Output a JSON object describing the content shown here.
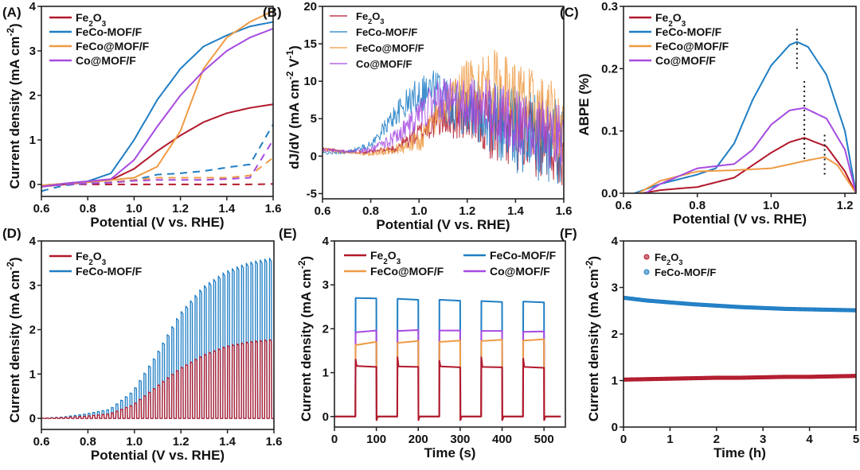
{
  "colors": {
    "Fe2O3": "#b2182b",
    "FeCo-MOF/F": "#1f7ec4",
    "FeCo@MOF/F": "#ef9b45",
    "Co@MOF/F": "#a64be0"
  },
  "chart_data": [
    {
      "id": "A",
      "panel_label": "(A)",
      "type": "line",
      "xlabel": "Potential (V vs. RHE)",
      "ylabel": "Current density (mA cm-2)",
      "xlim": [
        0.6,
        1.6
      ],
      "ylim": [
        -0.27,
        4
      ],
      "xticks": [
        "0.6",
        "0.8",
        "1.0",
        "1.2",
        "1.4",
        "1.6"
      ],
      "yticks": [
        "0",
        "1",
        "2",
        "3",
        "4"
      ],
      "legend": [
        "Fe2O3",
        "FeCo-MOF/F",
        "FeCo@MOF/F",
        "Co@MOF/F"
      ],
      "legend_position": "top-left",
      "x": [
        0.6,
        0.7,
        0.8,
        0.9,
        1.0,
        1.1,
        1.2,
        1.3,
        1.4,
        1.5,
        1.6
      ],
      "series": [
        {
          "name": "Fe2O3",
          "style": "solid",
          "values": [
            -0.05,
            0.0,
            0.05,
            0.1,
            0.35,
            0.75,
            1.1,
            1.4,
            1.6,
            1.72,
            1.8
          ]
        },
        {
          "name": "FeCo-MOF/F",
          "style": "solid",
          "values": [
            -0.05,
            0.02,
            0.07,
            0.25,
            1.0,
            1.9,
            2.6,
            3.1,
            3.35,
            3.55,
            3.65
          ]
        },
        {
          "name": "FeCo@MOF/F",
          "style": "solid",
          "values": [
            -0.02,
            0.02,
            0.05,
            0.1,
            0.15,
            0.4,
            1.2,
            2.6,
            3.3,
            3.65,
            3.9
          ]
        },
        {
          "name": "Co@MOF/F",
          "style": "solid",
          "values": [
            -0.05,
            0.02,
            0.07,
            0.12,
            0.55,
            1.3,
            2.0,
            2.55,
            3.0,
            3.3,
            3.5
          ]
        },
        {
          "name": "Fe2O3",
          "style": "dashed",
          "values": [
            -0.05,
            0.0,
            0.0,
            0.0,
            0.0,
            0.0,
            0.0,
            0.0,
            0.0,
            0.0,
            0.01
          ]
        },
        {
          "name": "FeCo-MOF/F",
          "style": "dashed",
          "values": [
            -0.15,
            -0.02,
            0.02,
            0.05,
            0.1,
            0.22,
            0.25,
            0.3,
            0.38,
            0.45,
            1.35
          ]
        },
        {
          "name": "FeCo@MOF/F",
          "style": "dashed",
          "values": [
            -0.05,
            0.0,
            0.02,
            0.05,
            0.1,
            0.15,
            0.15,
            0.15,
            0.15,
            0.2,
            0.6
          ]
        },
        {
          "name": "Co@MOF/F",
          "style": "dashed",
          "values": [
            -0.05,
            0.0,
            0.02,
            0.04,
            0.08,
            0.1,
            0.1,
            0.1,
            0.12,
            0.15,
            1.0
          ]
        }
      ]
    },
    {
      "id": "B",
      "panel_label": "(B)",
      "type": "line",
      "xlabel": "Potential (V vs. RHE)",
      "ylabel": "dJ/dV (mA cm-2 V-1)",
      "xlim": [
        0.6,
        1.6
      ],
      "ylim": [
        -5.7,
        20
      ],
      "xticks": [
        "0.6",
        "0.8",
        "1.0",
        "1.2",
        "1.4",
        "1.6"
      ],
      "yticks": [
        "-5",
        "0",
        "5",
        "10",
        "15",
        "20"
      ],
      "legend": [
        "Fe2O3",
        "FeCo-MOF/F",
        "FeCo@MOF/F",
        "Co@MOF/F"
      ],
      "legend_position": "top-left",
      "x": [
        0.6,
        0.7,
        0.8,
        0.9,
        1.0,
        1.05,
        1.1,
        1.2,
        1.3,
        1.4,
        1.5,
        1.6
      ],
      "series": [
        {
          "name": "Fe2O3",
          "values": [
            1.0,
            0.6,
            0.5,
            1.0,
            3.0,
            4.2,
            5.0,
            5.5,
            4.0,
            3.0,
            2.0,
            1.0
          ],
          "noise": [
            0.2,
            0.2,
            0.3,
            0.6,
            1.5,
            2.0,
            2.5,
            3.5,
            4.5,
            5,
            5,
            5
          ]
        },
        {
          "name": "FeCo-MOF/F",
          "values": [
            0.4,
            0.5,
            1.5,
            5.5,
            8.5,
            9.0,
            8.0,
            6.5,
            5.0,
            3.5,
            2.5,
            1.5
          ],
          "noise": [
            0.2,
            0.2,
            0.5,
            1.5,
            2.5,
            3.0,
            3.5,
            4.0,
            5,
            6,
            6,
            6
          ]
        },
        {
          "name": "FeCo@MOF/F",
          "values": [
            0.8,
            0.5,
            0.3,
            0.8,
            2.0,
            4.0,
            6.5,
            9.5,
            10.0,
            8.0,
            6.0,
            4.0
          ],
          "noise": [
            0.2,
            0.2,
            0.3,
            0.6,
            1.5,
            2.0,
            2.5,
            3.5,
            4.5,
            5,
            5,
            5
          ]
        },
        {
          "name": "Co@MOF/F",
          "values": [
            0.8,
            0.6,
            0.8,
            2.5,
            5.5,
            6.8,
            7.5,
            7.0,
            6.0,
            4.5,
            3.0,
            2.0
          ],
          "noise": [
            0.2,
            0.2,
            0.4,
            1.0,
            2.0,
            2.5,
            3.0,
            3.5,
            4.5,
            5,
            5,
            5
          ]
        }
      ]
    },
    {
      "id": "C",
      "panel_label": "(C)",
      "type": "line",
      "xlabel": "Potential (V vs. RHE)",
      "ylabel": "ABPE (%)",
      "xlim": [
        0.6,
        1.23
      ],
      "ylim": [
        0,
        0.3
      ],
      "xticks": [
        "0.6",
        "0.8",
        "1.0",
        "1.2"
      ],
      "yticks": [
        "0.0",
        "0.1",
        "0.2",
        "0.3"
      ],
      "legend": [
        "Fe2O3",
        "FeCo-MOF/F",
        "FeCo@MOF/F",
        "Co@MOF/F"
      ],
      "legend_position": "top-left",
      "series": [
        {
          "name": "Fe2O3",
          "x": [
            0.65,
            0.7,
            0.8,
            0.9,
            1.0,
            1.05,
            1.09,
            1.15,
            1.2,
            1.23
          ],
          "values": [
            0,
            0.005,
            0.01,
            0.025,
            0.065,
            0.082,
            0.089,
            0.075,
            0.035,
            0
          ]
        },
        {
          "name": "FeCo-MOF/F",
          "x": [
            0.63,
            0.7,
            0.8,
            0.85,
            0.9,
            0.95,
            1.0,
            1.05,
            1.07,
            1.1,
            1.15,
            1.2,
            1.23
          ],
          "values": [
            0,
            0.015,
            0.03,
            0.04,
            0.08,
            0.15,
            0.205,
            0.238,
            0.243,
            0.235,
            0.19,
            0.1,
            0
          ]
        },
        {
          "name": "FeCo@MOF/F",
          "x": [
            0.64,
            0.7,
            0.8,
            0.9,
            1.0,
            1.1,
            1.145,
            1.18,
            1.23
          ],
          "values": [
            0,
            0.02,
            0.035,
            0.037,
            0.04,
            0.053,
            0.058,
            0.045,
            0
          ]
        },
        {
          "name": "Co@MOF/F",
          "x": [
            0.66,
            0.7,
            0.8,
            0.9,
            0.95,
            1.0,
            1.05,
            1.09,
            1.15,
            1.2,
            1.23
          ],
          "values": [
            0,
            0.015,
            0.04,
            0.047,
            0.07,
            0.11,
            0.133,
            0.137,
            0.12,
            0.07,
            0
          ]
        }
      ],
      "peak_markers": [
        {
          "x": 1.07,
          "y": [
            0.2,
            0.265
          ]
        },
        {
          "x": 1.09,
          "y": [
            0.055,
            0.18
          ]
        },
        {
          "x": 1.145,
          "y": [
            0.03,
            0.098
          ]
        }
      ]
    },
    {
      "id": "D",
      "panel_label": "(D)",
      "type": "line",
      "xlabel": "Potential (V vs. RHE)",
      "ylabel": "Current density (mA cm-2)",
      "xlim": [
        0.6,
        1.6
      ],
      "ylim": [
        -0.25,
        4
      ],
      "xticks": [
        "0.6",
        "0.8",
        "1.0",
        "1.2",
        "1.4",
        "1.6"
      ],
      "yticks": [
        "0",
        "1",
        "2",
        "3",
        "4"
      ],
      "legend": [
        "Fe2O3",
        "FeCo-MOF/F"
      ],
      "legend_position": "top-left",
      "chop_period_V": 0.02,
      "x": [
        0.6,
        0.7,
        0.8,
        0.9,
        1.0,
        1.1,
        1.2,
        1.3,
        1.4,
        1.5,
        1.6
      ],
      "series": [
        {
          "name": "FeCo-MOF/F",
          "values": [
            0.0,
            0.03,
            0.1,
            0.2,
            0.6,
            1.4,
            2.3,
            2.9,
            3.25,
            3.45,
            3.55
          ]
        },
        {
          "name": "Fe2O3",
          "values": [
            0.0,
            0.02,
            0.05,
            0.1,
            0.3,
            0.7,
            1.1,
            1.4,
            1.6,
            1.7,
            1.75
          ]
        }
      ]
    },
    {
      "id": "E",
      "panel_label": "(E)",
      "type": "line",
      "xlabel": "Time (s)",
      "ylabel": "Current density (mA cm-2)",
      "xlim": [
        0,
        551
      ],
      "ylim": [
        -0.24,
        4
      ],
      "xticks": [
        "0",
        "100",
        "200",
        "300",
        "400",
        "500"
      ],
      "yticks": [
        "0",
        "1",
        "2",
        "3",
        "4"
      ],
      "legend": [
        "Fe2O3",
        "FeCo-MOF/F",
        "FeCo@MOF/F",
        "Co@MOF/F"
      ],
      "legend_position": "top",
      "light_on_intervals": [
        [
          50,
          100
        ],
        [
          150,
          200
        ],
        [
          250,
          300
        ],
        [
          350,
          400
        ],
        [
          450,
          500
        ]
      ],
      "end_time": 540,
      "series": [
        {
          "name": "FeCo-MOF/F",
          "on_start": [
            2.7,
            2.68,
            2.66,
            2.63,
            2.62
          ],
          "on_end": [
            2.69,
            2.66,
            2.64,
            2.61,
            2.6
          ]
        },
        {
          "name": "Co@MOF/F",
          "on_start": [
            1.92,
            1.95,
            1.96,
            1.95,
            1.93
          ],
          "on_end": [
            1.96,
            1.97,
            1.96,
            1.95,
            1.94
          ]
        },
        {
          "name": "FeCo@MOF/F",
          "on_start": [
            1.63,
            1.68,
            1.7,
            1.72,
            1.73
          ],
          "on_end": [
            1.7,
            1.72,
            1.73,
            1.75,
            1.76
          ]
        },
        {
          "name": "Fe2O3",
          "on_start": [
            1.15,
            1.14,
            1.14,
            1.13,
            1.13
          ],
          "on_end": [
            1.13,
            1.13,
            1.12,
            1.12,
            1.11
          ],
          "spike": [
            1.3,
            1.35,
            1.27,
            1.35,
            1.32
          ]
        }
      ]
    },
    {
      "id": "F",
      "panel_label": "(F)",
      "type": "scatter",
      "xlabel": "Time (h)",
      "ylabel": "Current density (mA cm-2)",
      "xlim": [
        0,
        5
      ],
      "ylim": [
        0,
        4
      ],
      "xticks": [
        "0",
        "1",
        "2",
        "3",
        "4",
        "5"
      ],
      "yticks": [
        "0",
        "1",
        "2",
        "3",
        "4"
      ],
      "legend": [
        "Fe2O3",
        "FeCo-MOF/F"
      ],
      "legend_position": "top-left",
      "x": [
        0,
        0.5,
        1,
        1.5,
        2,
        2.5,
        3,
        3.5,
        4,
        4.5,
        5
      ],
      "series": [
        {
          "name": "FeCo-MOF/F",
          "values": [
            2.78,
            2.72,
            2.68,
            2.64,
            2.61,
            2.58,
            2.56,
            2.54,
            2.53,
            2.52,
            2.51
          ]
        },
        {
          "name": "Fe2O3",
          "values": [
            1.02,
            1.03,
            1.04,
            1.05,
            1.06,
            1.06,
            1.07,
            1.08,
            1.08,
            1.09,
            1.1
          ]
        }
      ]
    }
  ]
}
